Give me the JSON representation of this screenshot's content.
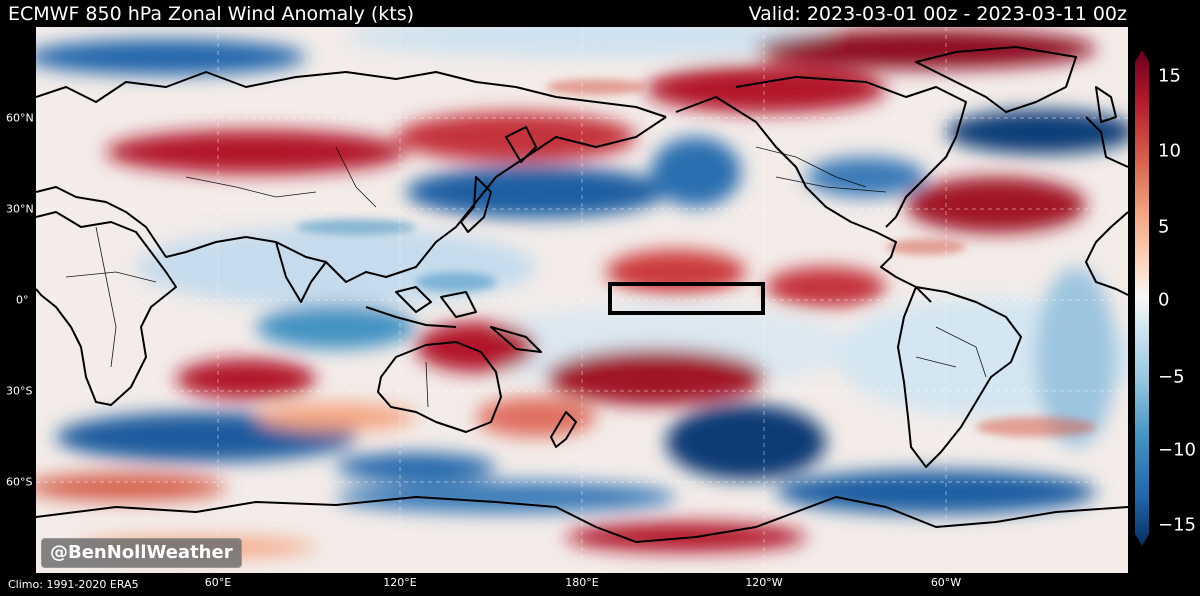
{
  "header": {
    "title": "ECMWF 850 hPa Zonal Wind Anomaly (kts)",
    "valid": "Valid: 2023-03-01 00z - 2023-03-11 00z"
  },
  "footer": {
    "climo": "Climo: 1991-2020 ERA5",
    "watermark": "@BenNollWeather"
  },
  "map": {
    "lat_labels": [
      "60°N",
      "30°N",
      "0°",
      "30°S",
      "60°S"
    ],
    "lon_labels": [
      "60°E",
      "120°E",
      "180°E",
      "120°W",
      "60°W"
    ],
    "highlight_box": "Niño 3.4 region outline"
  },
  "colorbar": {
    "ticks": [
      "15",
      "10",
      "5",
      "0",
      "−5",
      "−10",
      "−15"
    ],
    "range": [
      -15,
      15
    ],
    "colors": [
      "#053061",
      "#2166ac",
      "#4393c3",
      "#92c5de",
      "#d1e5f0",
      "#f7f7f7",
      "#fddbc7",
      "#f4a582",
      "#d6604d",
      "#b2182b",
      "#67001f"
    ]
  }
}
